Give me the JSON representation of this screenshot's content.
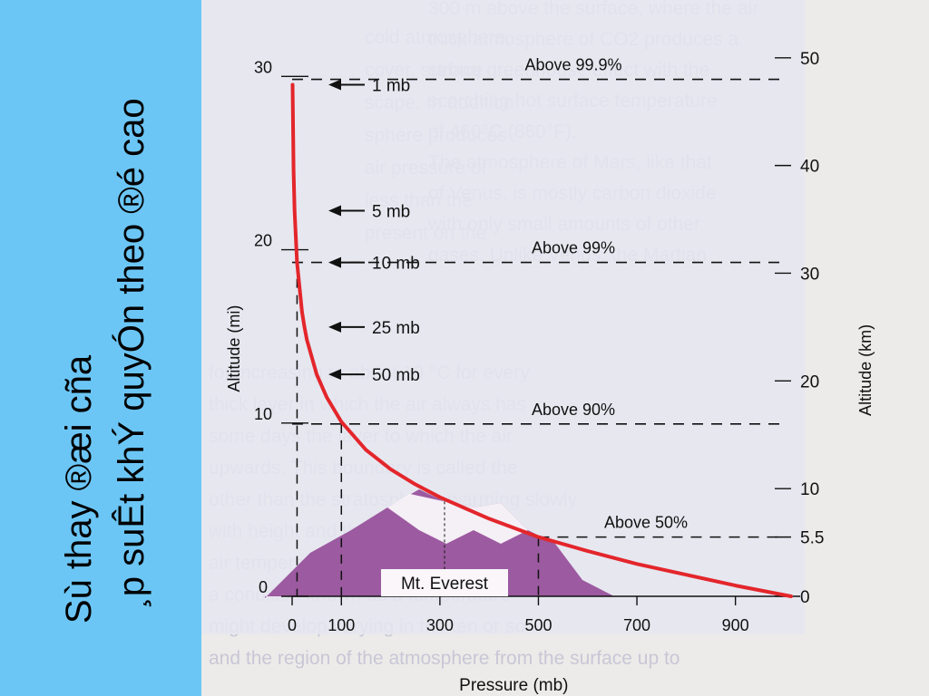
{
  "side_title": {
    "line1": "Sù thay ®æi cña",
    "line2": "¸p suÊt khÝ quyÓn theo ®é cao"
  },
  "colors": {
    "left_band": "#6cc6f5",
    "page_bg": "#ecebe9",
    "plot_bg": "#e6e6f1",
    "curve": "#e3262b",
    "mountain": "#9c5aa0",
    "snow": "#ffffff",
    "background_text": "#c9c7d6"
  },
  "background_text": [
    "300 m above the surface, where the air",
    "thick atmosphere of CO2 produces a",
    "strong greenhouse effect with the",
    "scorching hot surface temperature",
    "of 460°C (860°F).",
    "The atmosphere of Mars, like that",
    "of Venus, is mostly carbon dioxide",
    "with only small amounts of other",
    "gases. Unlike Venus, the Martian",
    "for increasing to about 10 °C for every",
    "thick layer in which the air always has",
    "some days the layer to which the air",
    "upwards. This boundary is called the",
    "other than the stratosphere, warming slowly",
    "with height and the air would cease",
    "air temperatures increasing with height",
    "a condition known as a temperature",
    "might develop varying in the ten or so",
    "and the region of the atmosphere from the surface up to",
    "cold atmosphere,",
    "cover, surface",
    "scape. In addition",
    "sphere produces",
    "air pressure of",
    "less than the",
    "present on the"
  ],
  "chart_data": {
    "type": "line",
    "title": "",
    "xlabel": "Pressure (mb)",
    "ylabel_left": "Altitude (mi)",
    "ylabel_right": "Altitude (km)",
    "xlim": [
      0,
      1013
    ],
    "ylim_km": [
      0,
      52
    ],
    "x_ticks": [
      0,
      100,
      300,
      500,
      700,
      900
    ],
    "y_ticks_mi": [
      0,
      10,
      20,
      30
    ],
    "y_ticks_km": [
      "0",
      "5.5",
      "10",
      "20",
      "30",
      "40",
      "50"
    ],
    "grid": false,
    "legend": "none",
    "series": [
      {
        "x": [
          1013,
          900,
          800,
          700,
          600,
          500,
          400,
          300,
          250,
          200,
          150,
          100,
          70,
          50,
          30,
          25,
          20,
          10,
          5,
          3,
          1
        ],
        "y": [
          0,
          1.0,
          2.0,
          3.0,
          4.2,
          5.5,
          7.2,
          9.2,
          10.4,
          11.8,
          13.6,
          16.2,
          18.5,
          20.6,
          23.8,
          25.0,
          26.4,
          31.0,
          35.8,
          39.5,
          47.5
        ]
      }
    ],
    "annotations": {
      "pressure_arrows": [
        {
          "label": "1 mb",
          "alt_km": 47.5
        },
        {
          "label": "5 mb",
          "alt_km": 35.8
        },
        {
          "label": "10 mb",
          "alt_km": 31.0
        },
        {
          "label": "25 mb",
          "alt_km": 25.0
        },
        {
          "label": "50 mb",
          "alt_km": 20.6
        }
      ],
      "levels": [
        {
          "label": "Above 99.9%",
          "alt_km": 48,
          "x_from": 0
        },
        {
          "label": "Above 99%",
          "alt_km": 31,
          "x_from": 0
        },
        {
          "label": "Above 90%",
          "alt_km": 16,
          "x_from": 0
        },
        {
          "label": "Above 50%",
          "alt_km": 5.5,
          "x_from": 500
        }
      ],
      "vertical_refs": [
        {
          "x": 10,
          "alt_km_top": 31
        },
        {
          "x": 100,
          "alt_km_top": 16
        },
        {
          "x": 500,
          "alt_km_top": 5.5
        }
      ],
      "peak": {
        "label": "Mt. Everest",
        "alt_km": 8.8
      }
    }
  }
}
